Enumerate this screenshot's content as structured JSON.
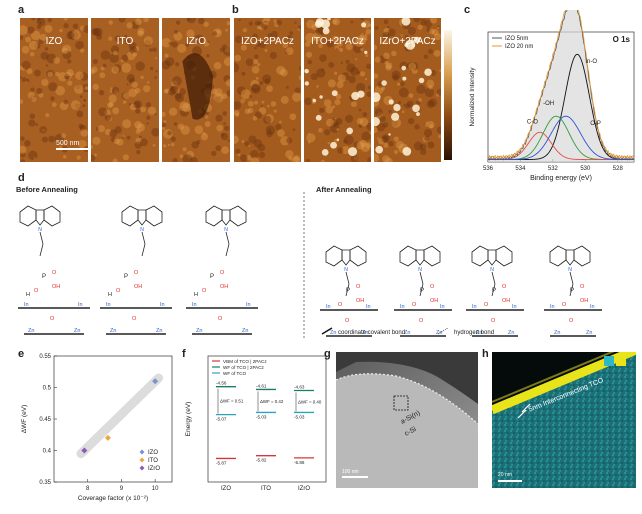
{
  "panel_labels": {
    "a": "a",
    "b": "b",
    "c": "c",
    "d": "d",
    "e": "e",
    "f": "f",
    "g": "g",
    "h": "h"
  },
  "afm_a": {
    "images": [
      "IZO",
      "ITO",
      "IZrO"
    ],
    "scalebar": "500 nm"
  },
  "afm_b": {
    "images": [
      "IZO+2PACz",
      "ITO+2PACz",
      "IZrO+2PACz"
    ],
    "colorbar_top": "",
    "colorbar_bottom": ""
  },
  "panel_d": {
    "before_title": "Before Annealing",
    "after_title": "After Annealing",
    "legend_coord": "coordinate covalent bond",
    "legend_hbond": "hydrogen bond",
    "atoms": {
      "in": "In",
      "zn": "Zn",
      "o": "O",
      "oh": "OH",
      "h": "H",
      "p": "P",
      "n": "N"
    }
  },
  "panel_g": {
    "label_asi": "a-Si(n)",
    "label_csi": "c-Si",
    "scalebar": "100 nm"
  },
  "panel_h": {
    "annotation": "~ 5nm Interconnecting TCO",
    "scalebar": "20 nm"
  },
  "chart_data": [
    {
      "type": "line",
      "panel": "c",
      "title": "O 1s",
      "xlabel": "Binding energy (eV)",
      "ylabel": "Normalized Intensity",
      "xlim": [
        536,
        527
      ],
      "xticks": [
        536,
        534,
        532,
        530,
        528
      ],
      "legend": [
        "IZO 5nm",
        "IZO 20 nm"
      ],
      "legend_colors": [
        "#555555",
        "#e8962e"
      ],
      "peak_labels": [
        "In-O",
        "-OH",
        "C-O",
        "O-P"
      ],
      "components": [
        {
          "name": "In-O",
          "center": 530.5,
          "width": 0.75,
          "amp": 0.85,
          "color": "#111111"
        },
        {
          "name": "-OH",
          "center": 531.8,
          "width": 0.8,
          "amp": 0.35,
          "color": "#2f9e3a"
        },
        {
          "name": "C-O",
          "center": 532.8,
          "width": 0.7,
          "amp": 0.22,
          "color": "#e24c4c"
        },
        {
          "name": "O-P",
          "center": 531.2,
          "width": 0.9,
          "amp": 0.35,
          "color": "#2b55d6"
        }
      ]
    },
    {
      "type": "scatter",
      "panel": "e",
      "xlabel": "Coverage factor (x 10⁻²)",
      "ylabel": "ΔWF (eV)",
      "xlim": [
        7,
        10.5
      ],
      "ylim": [
        0.35,
        0.55
      ],
      "xticks": [
        8,
        9,
        10
      ],
      "yticks": [
        0.35,
        0.4,
        0.45,
        0.5,
        0.55
      ],
      "series": [
        {
          "name": "IZO",
          "x": [
            10
          ],
          "y": [
            0.51
          ],
          "color": "#7a93d4"
        },
        {
          "name": "ITO",
          "x": [
            8.6
          ],
          "y": [
            0.42
          ],
          "color": "#f0a545"
        },
        {
          "name": "IZrO",
          "x": [
            7.9
          ],
          "y": [
            0.4
          ],
          "color": "#8b5bb5"
        }
      ]
    },
    {
      "type": "bar",
      "panel": "f",
      "ylabel": "Energy (eV)",
      "categories": [
        "IZO",
        "ITO",
        "IZrO"
      ],
      "legend": [
        "VBM of TCO | 2PACz",
        "WF of TCO | 2PACz",
        "WF of TCO"
      ],
      "legend_colors": [
        "#d9343a",
        "#1a7b6b",
        "#2aa2c2"
      ],
      "vbm": [
        -5.87,
        -5.82,
        -5.86
      ],
      "wf_pacz": [
        -4.56,
        -4.61,
        -4.63
      ],
      "wf": [
        -5.07,
        -5.03,
        -5.03
      ],
      "dwf": [
        "ΔWF = 0.51",
        "ΔWF = 0.42",
        "ΔWF = 0.40"
      ],
      "ylim": [
        -6.3,
        -4.0
      ]
    }
  ]
}
